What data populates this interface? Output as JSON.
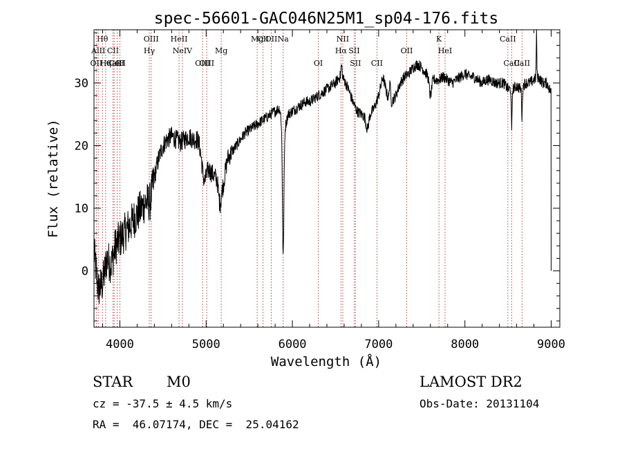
{
  "chart_data": {
    "type": "line",
    "title": "spec-56601-GAC046N25M1_sp04-176.fits",
    "xlabel": "Wavelength (Å)",
    "ylabel": "Flux (relative)",
    "xlim": [
      3700,
      9100
    ],
    "ylim": [
      -9,
      38.5
    ],
    "xticks": [
      4000,
      5000,
      6000,
      7000,
      8000,
      9000
    ],
    "yticks": [
      0,
      10,
      20,
      30
    ],
    "line_color": "#000000",
    "marker_color": "#a52a2a",
    "lines": [
      {
        "label": "Hθ",
        "x": 3798,
        "row": 0
      },
      {
        "label": "AlII",
        "x": 3750,
        "row": 1
      },
      {
        "label": "CII",
        "x": 3920,
        "row": 1
      },
      {
        "label": "OII",
        "x": 3727,
        "row": 2
      },
      {
        "label": "Hη",
        "x": 3835,
        "row": 2
      },
      {
        "label": "CaK",
        "x": 3934,
        "row": 2
      },
      {
        "label": "CaH",
        "x": 3969,
        "row": 2
      },
      {
        "label": "OI",
        "x": 4000,
        "row": 2
      },
      {
        "label": "OIII",
        "x": 4363,
        "row": 0
      },
      {
        "label": "Hγ",
        "x": 4341,
        "row": 1
      },
      {
        "label": "HeII",
        "x": 4686,
        "row": 0
      },
      {
        "label": "NeIV",
        "x": 4725,
        "row": 1
      },
      {
        "label": "OIII",
        "x": 4959,
        "row": 2
      },
      {
        "label": "OIII",
        "x": 5007,
        "row": 2
      },
      {
        "label": "Mg",
        "x": 5175,
        "row": 1
      },
      {
        "label": "Mg",
        "x": 5592,
        "row": 0
      },
      {
        "label": "CII",
        "x": 5660,
        "row": 0
      },
      {
        "label": "OII",
        "x": 5755,
        "row": 0
      },
      {
        "label": "Na",
        "x": 5893,
        "row": 0
      },
      {
        "label": "NII",
        "x": 6584,
        "row": 0
      },
      {
        "label": "OI",
        "x": 6300,
        "row": 2
      },
      {
        "label": "Hα",
        "x": 6563,
        "row": 1
      },
      {
        "label": "SII",
        "x": 6716,
        "row": 1
      },
      {
        "label": "SII",
        "x": 6731,
        "row": 2
      },
      {
        "label": "CII",
        "x": 6980,
        "row": 2
      },
      {
        "label": "OII",
        "x": 7325,
        "row": 1
      },
      {
        "label": "K",
        "x": 7699,
        "row": 0
      },
      {
        "label": "HeI",
        "x": 7770,
        "row": 1
      },
      {
        "label": "CaII",
        "x": 8498,
        "row": 0
      },
      {
        "label": "CaII",
        "x": 8542,
        "row": 2
      },
      {
        "label": "CaII",
        "x": 8662,
        "row": 2
      }
    ],
    "spectrum_anchors": [
      [
        3700,
        3
      ],
      [
        3750,
        -3
      ],
      [
        3800,
        -2
      ],
      [
        3850,
        2
      ],
      [
        3900,
        1
      ],
      [
        3950,
        4
      ],
      [
        4000,
        5
      ],
      [
        4050,
        6
      ],
      [
        4100,
        7
      ],
      [
        4150,
        8
      ],
      [
        4200,
        9
      ],
      [
        4250,
        10
      ],
      [
        4300,
        11
      ],
      [
        4350,
        11
      ],
      [
        4400,
        15
      ],
      [
        4450,
        18
      ],
      [
        4500,
        20
      ],
      [
        4550,
        21
      ],
      [
        4600,
        21.5
      ],
      [
        4650,
        21
      ],
      [
        4700,
        20.5
      ],
      [
        4750,
        21
      ],
      [
        4800,
        21.5
      ],
      [
        4850,
        21
      ],
      [
        4900,
        21
      ],
      [
        4950,
        20
      ],
      [
        5000,
        19
      ],
      [
        5050,
        16
      ],
      [
        5100,
        15
      ],
      [
        5150,
        15
      ],
      [
        5200,
        14
      ],
      [
        5250,
        18
      ],
      [
        5300,
        19
      ],
      [
        5350,
        20
      ],
      [
        5400,
        21
      ],
      [
        5450,
        22
      ],
      [
        5500,
        22.5
      ],
      [
        5550,
        23
      ],
      [
        5600,
        23.5
      ],
      [
        5650,
        24
      ],
      [
        5700,
        24.5
      ],
      [
        5750,
        25
      ],
      [
        5800,
        25.5
      ],
      [
        5850,
        26
      ],
      [
        5900,
        22
      ],
      [
        5950,
        25
      ],
      [
        6000,
        25.5
      ],
      [
        6050,
        26
      ],
      [
        6100,
        26.5
      ],
      [
        6150,
        27
      ],
      [
        6200,
        27
      ],
      [
        6250,
        27.5
      ],
      [
        6300,
        28
      ],
      [
        6350,
        28.5
      ],
      [
        6400,
        29
      ],
      [
        6450,
        29.5
      ],
      [
        6500,
        30
      ],
      [
        6550,
        31
      ],
      [
        6600,
        30.5
      ],
      [
        6650,
        29
      ],
      [
        6700,
        27
      ],
      [
        6750,
        25.5
      ],
      [
        6800,
        25
      ],
      [
        6850,
        24.5
      ],
      [
        6900,
        25
      ],
      [
        6950,
        26
      ],
      [
        7000,
        28
      ],
      [
        7050,
        31
      ],
      [
        7100,
        28
      ],
      [
        7150,
        27
      ],
      [
        7200,
        28
      ],
      [
        7250,
        30
      ],
      [
        7300,
        31
      ],
      [
        7350,
        31.5
      ],
      [
        7400,
        32.5
      ],
      [
        7450,
        33
      ],
      [
        7500,
        32.5
      ],
      [
        7550,
        31.5
      ],
      [
        7600,
        31
      ],
      [
        7650,
        30.5
      ],
      [
        7700,
        30.5
      ],
      [
        7750,
        31
      ],
      [
        7800,
        30.5
      ],
      [
        7850,
        30
      ],
      [
        7900,
        30.5
      ],
      [
        7950,
        31
      ],
      [
        8000,
        31.5
      ],
      [
        8050,
        31
      ],
      [
        8100,
        31
      ],
      [
        8150,
        30.5
      ],
      [
        8200,
        30
      ],
      [
        8250,
        30.5
      ],
      [
        8300,
        30.5
      ],
      [
        8350,
        30
      ],
      [
        8400,
        30
      ],
      [
        8450,
        30
      ],
      [
        8500,
        29
      ],
      [
        8550,
        29
      ],
      [
        8600,
        29.5
      ],
      [
        8650,
        29
      ],
      [
        8700,
        30
      ],
      [
        8750,
        30
      ],
      [
        8800,
        30.5
      ],
      [
        8850,
        31
      ],
      [
        8900,
        30
      ],
      [
        8950,
        30
      ],
      [
        9000,
        28.5
      ]
    ],
    "absorption_features": [
      {
        "x": 5893,
        "depth": 20,
        "width": 12
      },
      {
        "x": 5160,
        "depth": 4,
        "width": 25
      },
      {
        "x": 4980,
        "depth": 5,
        "width": 40
      },
      {
        "x": 8542,
        "depth": 7,
        "width": 6
      },
      {
        "x": 8662,
        "depth": 5,
        "width": 6
      },
      {
        "x": 7600,
        "depth": 3,
        "width": 20
      },
      {
        "x": 6870,
        "depth": 2,
        "width": 20
      }
    ],
    "emission_spikes": [
      {
        "x": 8830,
        "height": 7,
        "width": 5
      },
      {
        "x": 7130,
        "height": 3,
        "width": 8
      },
      {
        "x": 6570,
        "height": 2,
        "width": 10
      }
    ],
    "spectrum_end_drop": {
      "x": 9000,
      "y": 0
    }
  },
  "info": {
    "object_class": "STAR",
    "subclass": "M0",
    "survey": "LAMOST DR2",
    "redshift": "cz = -37.5 ± 4.5 km/s",
    "obs_date": "Obs-Date: 20131104",
    "coords": "RA =  46.07174, DEC =  25.04162"
  }
}
